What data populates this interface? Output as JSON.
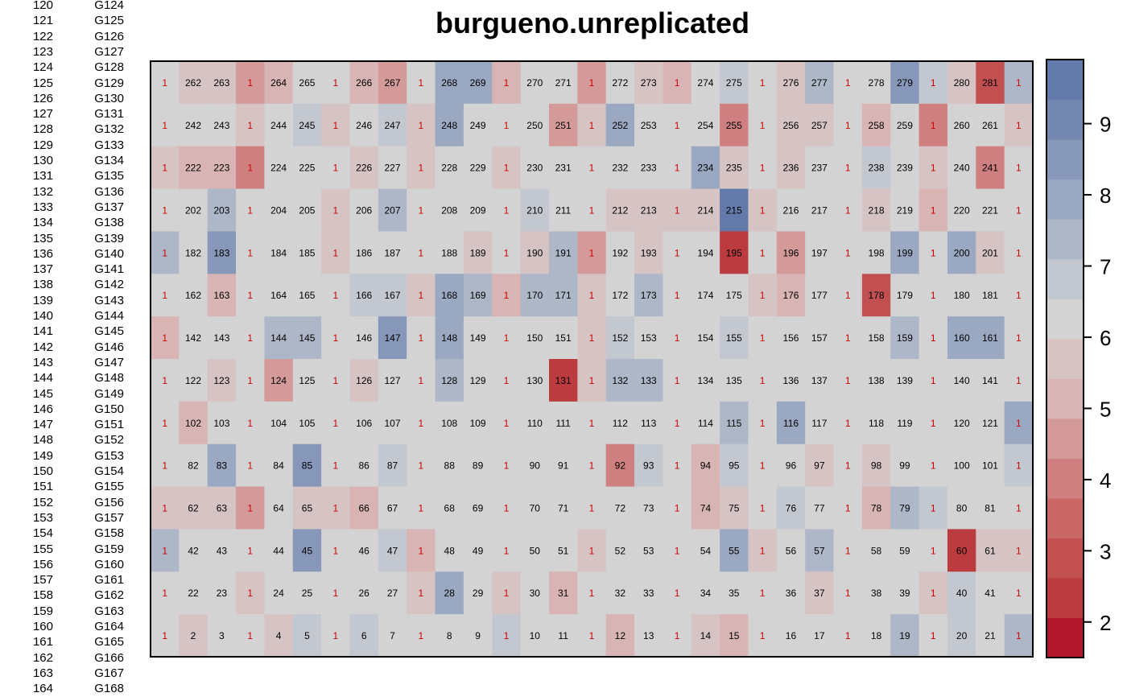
{
  "side_list": {
    "rows": [
      {
        "idx": "120",
        "gen": "G124"
      },
      {
        "idx": "121",
        "gen": "G125"
      },
      {
        "idx": "122",
        "gen": "G126"
      },
      {
        "idx": "123",
        "gen": "G127"
      },
      {
        "idx": "124",
        "gen": "G128"
      },
      {
        "idx": "125",
        "gen": "G129"
      },
      {
        "idx": "126",
        "gen": "G130"
      },
      {
        "idx": "127",
        "gen": "G131"
      },
      {
        "idx": "128",
        "gen": "G132"
      },
      {
        "idx": "129",
        "gen": "G133"
      },
      {
        "idx": "130",
        "gen": "G134"
      },
      {
        "idx": "131",
        "gen": "G135"
      },
      {
        "idx": "132",
        "gen": "G136"
      },
      {
        "idx": "133",
        "gen": "G137"
      },
      {
        "idx": "134",
        "gen": "G138"
      },
      {
        "idx": "135",
        "gen": "G139"
      },
      {
        "idx": "136",
        "gen": "G140"
      },
      {
        "idx": "137",
        "gen": "G141"
      },
      {
        "idx": "138",
        "gen": "G142"
      },
      {
        "idx": "139",
        "gen": "G143"
      },
      {
        "idx": "140",
        "gen": "G144"
      },
      {
        "idx": "141",
        "gen": "G145"
      },
      {
        "idx": "142",
        "gen": "G146"
      },
      {
        "idx": "143",
        "gen": "G147"
      },
      {
        "idx": "144",
        "gen": "G148"
      },
      {
        "idx": "145",
        "gen": "G149"
      },
      {
        "idx": "146",
        "gen": "G150"
      },
      {
        "idx": "147",
        "gen": "G151"
      },
      {
        "idx": "148",
        "gen": "G152"
      },
      {
        "idx": "149",
        "gen": "G153"
      },
      {
        "idx": "150",
        "gen": "G154"
      },
      {
        "idx": "151",
        "gen": "G155"
      },
      {
        "idx": "152",
        "gen": "G156"
      },
      {
        "idx": "153",
        "gen": "G157"
      },
      {
        "idx": "154",
        "gen": "G158"
      },
      {
        "idx": "155",
        "gen": "G159"
      },
      {
        "idx": "156",
        "gen": "G160"
      },
      {
        "idx": "157",
        "gen": "G161"
      },
      {
        "idx": "158",
        "gen": "G162"
      },
      {
        "idx": "159",
        "gen": "G163"
      },
      {
        "idx": "160",
        "gen": "G164"
      },
      {
        "idx": "161",
        "gen": "G165"
      },
      {
        "idx": "162",
        "gen": "G166"
      },
      {
        "idx": "163",
        "gen": "G167"
      },
      {
        "idx": "164",
        "gen": "G168"
      }
    ]
  },
  "chart_data": {
    "type": "heatmap",
    "title": "burgueno.unreplicated",
    "n_rows": 14,
    "n_cols": 31,
    "check_label": "1",
    "row_labels": [
      [
        "1",
        "262",
        "263",
        "1",
        "264",
        "265",
        "1",
        "266",
        "267",
        "1",
        "268",
        "269",
        "1",
        "270",
        "271",
        "1",
        "272",
        "273",
        "1",
        "274",
        "275",
        "1",
        "276",
        "277",
        "1",
        "278",
        "279",
        "1",
        "280",
        "281",
        "1"
      ],
      [
        "1",
        "242",
        "243",
        "1",
        "244",
        "245",
        "1",
        "246",
        "247",
        "1",
        "248",
        "249",
        "1",
        "250",
        "251",
        "1",
        "252",
        "253",
        "1",
        "254",
        "255",
        "1",
        "256",
        "257",
        "1",
        "258",
        "259",
        "1",
        "260",
        "261",
        "1"
      ],
      [
        "1",
        "222",
        "223",
        "1",
        "224",
        "225",
        "1",
        "226",
        "227",
        "1",
        "228",
        "229",
        "1",
        "230",
        "231",
        "1",
        "232",
        "233",
        "1",
        "234",
        "235",
        "1",
        "236",
        "237",
        "1",
        "238",
        "239",
        "1",
        "240",
        "241",
        "1"
      ],
      [
        "1",
        "202",
        "203",
        "1",
        "204",
        "205",
        "1",
        "206",
        "207",
        "1",
        "208",
        "209",
        "1",
        "210",
        "211",
        "1",
        "212",
        "213",
        "1",
        "214",
        "215",
        "1",
        "216",
        "217",
        "1",
        "218",
        "219",
        "1",
        "220",
        "221",
        "1"
      ],
      [
        "1",
        "182",
        "183",
        "1",
        "184",
        "185",
        "1",
        "186",
        "187",
        "1",
        "188",
        "189",
        "1",
        "190",
        "191",
        "1",
        "192",
        "193",
        "1",
        "194",
        "195",
        "1",
        "196",
        "197",
        "1",
        "198",
        "199",
        "1",
        "200",
        "201",
        "1"
      ],
      [
        "1",
        "162",
        "163",
        "1",
        "164",
        "165",
        "1",
        "166",
        "167",
        "1",
        "168",
        "169",
        "1",
        "170",
        "171",
        "1",
        "172",
        "173",
        "1",
        "174",
        "175",
        "1",
        "176",
        "177",
        "1",
        "178",
        "179",
        "1",
        "180",
        "181",
        "1"
      ],
      [
        "1",
        "142",
        "143",
        "1",
        "144",
        "145",
        "1",
        "146",
        "147",
        "1",
        "148",
        "149",
        "1",
        "150",
        "151",
        "1",
        "152",
        "153",
        "1",
        "154",
        "155",
        "1",
        "156",
        "157",
        "1",
        "158",
        "159",
        "1",
        "160",
        "161",
        "1"
      ],
      [
        "1",
        "122",
        "123",
        "1",
        "124",
        "125",
        "1",
        "126",
        "127",
        "1",
        "128",
        "129",
        "1",
        "130",
        "131",
        "1",
        "132",
        "133",
        "1",
        "134",
        "135",
        "1",
        "136",
        "137",
        "1",
        "138",
        "139",
        "1",
        "140",
        "141",
        "1"
      ],
      [
        "1",
        "102",
        "103",
        "1",
        "104",
        "105",
        "1",
        "106",
        "107",
        "1",
        "108",
        "109",
        "1",
        "110",
        "111",
        "1",
        "112",
        "113",
        "1",
        "114",
        "115",
        "1",
        "116",
        "117",
        "1",
        "118",
        "119",
        "1",
        "120",
        "121",
        "1"
      ],
      [
        "1",
        "82",
        "83",
        "1",
        "84",
        "85",
        "1",
        "86",
        "87",
        "1",
        "88",
        "89",
        "1",
        "90",
        "91",
        "1",
        "92",
        "93",
        "1",
        "94",
        "95",
        "1",
        "96",
        "97",
        "1",
        "98",
        "99",
        "1",
        "100",
        "101",
        "1"
      ],
      [
        "1",
        "62",
        "63",
        "1",
        "64",
        "65",
        "1",
        "66",
        "67",
        "1",
        "68",
        "69",
        "1",
        "70",
        "71",
        "1",
        "72",
        "73",
        "1",
        "74",
        "75",
        "1",
        "76",
        "77",
        "1",
        "78",
        "79",
        "1",
        "80",
        "81",
        "1"
      ],
      [
        "1",
        "42",
        "43",
        "1",
        "44",
        "45",
        "1",
        "46",
        "47",
        "1",
        "48",
        "49",
        "1",
        "50",
        "51",
        "1",
        "52",
        "53",
        "1",
        "54",
        "55",
        "1",
        "56",
        "57",
        "1",
        "58",
        "59",
        "1",
        "60",
        "61",
        "1"
      ],
      [
        "1",
        "22",
        "23",
        "1",
        "24",
        "25",
        "1",
        "26",
        "27",
        "1",
        "28",
        "29",
        "1",
        "30",
        "31",
        "1",
        "32",
        "33",
        "1",
        "34",
        "35",
        "1",
        "36",
        "37",
        "1",
        "38",
        "39",
        "1",
        "40",
        "41",
        "1"
      ],
      [
        "1",
        "2",
        "3",
        "1",
        "4",
        "5",
        "1",
        "6",
        "7",
        "1",
        "8",
        "9",
        "1",
        "10",
        "11",
        "1",
        "12",
        "13",
        "1",
        "14",
        "15",
        "1",
        "16",
        "17",
        "1",
        "18",
        "19",
        "1",
        "20",
        "21",
        "1"
      ]
    ],
    "values": [
      [
        6.2,
        5.7,
        5.7,
        4.5,
        5.0,
        6.5,
        6.0,
        5.0,
        4.5,
        6.0,
        7.8,
        7.8,
        5.0,
        6.0,
        6.5,
        4.5,
        6.0,
        5.5,
        5.0,
        6.2,
        6.7,
        6.0,
        5.7,
        7.5,
        6.0,
        6.0,
        8.5,
        6.8,
        5.8,
        2.8,
        7.5
      ],
      [
        6.2,
        6.0,
        6.5,
        5.5,
        6.5,
        6.8,
        5.5,
        6.0,
        6.7,
        5.8,
        8.0,
        6.0,
        6.0,
        6.0,
        4.5,
        5.5,
        8.0,
        6.0,
        6.0,
        6.5,
        4.2,
        6.5,
        5.5,
        5.5,
        6.0,
        5.0,
        6.0,
        3.8,
        6.0,
        6.0,
        5.8
      ],
      [
        5.5,
        5.0,
        5.0,
        4.0,
        6.0,
        6.0,
        6.0,
        5.5,
        6.5,
        5.5,
        6.5,
        6.5,
        5.8,
        6.0,
        6.5,
        6.0,
        6.5,
        6.0,
        6.5,
        8.0,
        5.5,
        6.0,
        5.8,
        6.0,
        6.0,
        7.0,
        6.5,
        5.8,
        6.5,
        3.8,
        6.5
      ],
      [
        6.0,
        6.5,
        7.5,
        6.0,
        6.5,
        6.5,
        5.5,
        6.0,
        7.5,
        6.0,
        6.5,
        6.5,
        6.0,
        7.0,
        6.5,
        6.2,
        5.5,
        5.5,
        5.5,
        5.5,
        9.5,
        5.5,
        6.5,
        6.5,
        6.0,
        5.8,
        6.5,
        5.0,
        6.0,
        6.0,
        6.5
      ],
      [
        7.5,
        6.5,
        8.5,
        6.0,
        6.0,
        6.0,
        5.5,
        6.0,
        6.5,
        6.0,
        6.0,
        5.5,
        6.0,
        5.5,
        7.5,
        4.5,
        6.0,
        5.5,
        6.0,
        6.5,
        2.5,
        6.0,
        4.5,
        6.0,
        6.0,
        6.5,
        8.0,
        6.0,
        8.2,
        5.5,
        6.0
      ],
      [
        6.5,
        6.0,
        5.0,
        6.0,
        6.0,
        6.0,
        6.0,
        7.0,
        6.8,
        5.5,
        8.0,
        7.5,
        5.0,
        7.5,
        7.5,
        5.5,
        6.0,
        7.5,
        6.0,
        6.0,
        6.0,
        5.5,
        5.0,
        6.0,
        6.5,
        2.8,
        6.0,
        6.0,
        6.0,
        6.0,
        6.0
      ],
      [
        5.0,
        6.0,
        6.5,
        6.0,
        7.5,
        7.5,
        6.0,
        6.0,
        8.5,
        6.0,
        8.0,
        6.5,
        6.0,
        6.0,
        6.0,
        5.5,
        7.0,
        6.5,
        6.0,
        6.5,
        7.0,
        6.0,
        6.0,
        6.0,
        6.0,
        6.0,
        7.5,
        6.0,
        8.0,
        8.0,
        6.5
      ],
      [
        6.5,
        6.0,
        5.5,
        6.0,
        4.8,
        6.5,
        6.0,
        5.5,
        6.5,
        6.0,
        7.5,
        6.5,
        6.0,
        6.0,
        2.5,
        5.5,
        7.5,
        7.5,
        6.0,
        6.5,
        6.5,
        6.0,
        6.0,
        6.0,
        6.0,
        6.0,
        6.5,
        6.0,
        6.0,
        6.0,
        6.5
      ],
      [
        6.5,
        5.2,
        6.0,
        6.0,
        6.0,
        6.5,
        6.5,
        6.0,
        6.5,
        6.0,
        6.0,
        6.0,
        6.0,
        6.5,
        6.0,
        6.0,
        6.5,
        6.5,
        6.0,
        6.0,
        7.5,
        6.0,
        7.8,
        6.5,
        6.0,
        6.0,
        6.0,
        6.0,
        6.5,
        6.0,
        8.0
      ],
      [
        6.0,
        6.0,
        8.0,
        6.0,
        6.0,
        8.5,
        6.0,
        6.0,
        7.0,
        6.0,
        6.0,
        6.0,
        6.0,
        6.0,
        6.0,
        6.0,
        4.2,
        7.0,
        6.0,
        5.0,
        7.0,
        6.0,
        6.0,
        5.5,
        6.0,
        5.5,
        6.0,
        6.0,
        6.0,
        6.0,
        7.0
      ],
      [
        5.5,
        5.5,
        5.5,
        4.5,
        6.0,
        5.5,
        5.5,
        5.0,
        6.0,
        6.0,
        6.0,
        6.5,
        6.0,
        6.0,
        6.0,
        6.0,
        6.0,
        6.0,
        6.5,
        5.0,
        5.5,
        6.0,
        7.0,
        6.0,
        6.0,
        5.0,
        7.5,
        7.0,
        6.0,
        6.0,
        6.0
      ],
      [
        7.5,
        6.5,
        6.5,
        6.0,
        6.0,
        8.5,
        6.0,
        6.0,
        7.0,
        5.0,
        6.0,
        6.0,
        6.5,
        6.5,
        6.5,
        5.5,
        6.5,
        6.5,
        6.0,
        6.0,
        8.0,
        5.5,
        6.5,
        7.5,
        6.0,
        6.0,
        6.0,
        6.0,
        2.5,
        5.5,
        5.8
      ],
      [
        6.0,
        6.5,
        6.0,
        5.5,
        6.0,
        6.0,
        6.5,
        6.0,
        6.0,
        5.5,
        8.0,
        6.0,
        5.5,
        6.0,
        5.0,
        6.0,
        6.0,
        6.0,
        6.0,
        6.0,
        6.0,
        6.0,
        6.0,
        5.5,
        6.5,
        6.5,
        6.5,
        5.5,
        7.0,
        6.0,
        6.0
      ],
      [
        6.5,
        5.5,
        6.0,
        6.0,
        5.5,
        7.0,
        6.0,
        7.0,
        6.0,
        6.0,
        6.0,
        6.0,
        7.0,
        6.0,
        6.0,
        6.0,
        5.0,
        6.0,
        6.0,
        5.5,
        5.0,
        6.0,
        6.5,
        6.5,
        6.0,
        6.0,
        7.5,
        6.0,
        7.0,
        6.0,
        7.5
      ]
    ],
    "legend": {
      "min": 1.5,
      "max": 9.9,
      "ticks": [
        2,
        3,
        4,
        5,
        6,
        7,
        8,
        9
      ],
      "colors": [
        "#b2182b",
        "#bb3b3e",
        "#c25050",
        "#c96767",
        "#cf7f7f",
        "#d49a9a",
        "#d8b4b4",
        "#d6c4c4",
        "#d3d3d3",
        "#c3c8d0",
        "#adb7c8",
        "#9aa8c2",
        "#8797b9",
        "#7487b1",
        "#6379aa"
      ]
    },
    "colors": {
      "check_text": "#cc0000",
      "cell_text": "#000000",
      "frame": "#000000"
    }
  }
}
